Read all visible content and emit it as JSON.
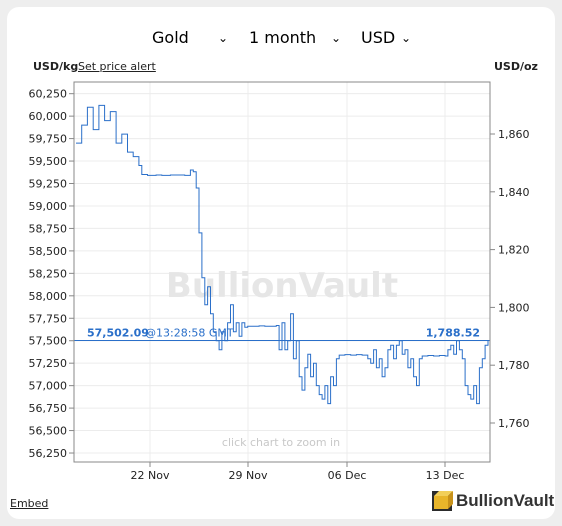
{
  "controls": {
    "metal": "Gold",
    "period": "1 month",
    "currency": "USD"
  },
  "header": {
    "left_unit": "USD/kg",
    "set_alert": "Set price alert",
    "right_unit": "USD/oz"
  },
  "footer": {
    "embed": "Embed",
    "brand": "BullionVault"
  },
  "chart_data": {
    "type": "candlestick",
    "watermark": "BullionVault",
    "zoom_hint": "click chart to zoom in",
    "left_axis": {
      "unit": "USD/kg",
      "ylim": [
        56150,
        60380
      ],
      "ticks": [
        "56,250",
        "56,500",
        "56,750",
        "57,000",
        "57,250",
        "57,500",
        "57,750",
        "58,000",
        "58,250",
        "58,500",
        "58,750",
        "59,000",
        "59,250",
        "59,500",
        "59,750",
        "60,000",
        "60,250"
      ]
    },
    "right_axis": {
      "unit": "USD/oz",
      "ylim": [
        1746.5,
        1878.0
      ],
      "ticks": [
        "1,760",
        "1,780",
        "1,800",
        "1,820",
        "1,840",
        "1,860"
      ]
    },
    "x_ticks": [
      "22 Nov",
      "29 Nov",
      "06 Dec",
      "13 Dec"
    ],
    "current_price_kg": "57,502.09",
    "current_price_oz": "1,788.52",
    "current_time_label": "@13:28:58 GMT",
    "current_line_kg": 57502.09,
    "grid": true,
    "series_color": "#2a6fc9",
    "price_path_kg": [
      [
        0,
        59700
      ],
      [
        2,
        59900
      ],
      [
        4,
        60100
      ],
      [
        6,
        59850
      ],
      [
        8,
        60120
      ],
      [
        10,
        59950
      ],
      [
        12,
        60050
      ],
      [
        14,
        59700
      ],
      [
        16,
        59800
      ],
      [
        18,
        59600
      ],
      [
        20,
        59550
      ],
      [
        22,
        59450
      ],
      [
        23,
        59350
      ],
      [
        25,
        59340
      ],
      [
        28,
        59345
      ],
      [
        30,
        59340
      ],
      [
        33,
        59345
      ],
      [
        36,
        59345
      ],
      [
        38,
        59340
      ],
      [
        40,
        59400
      ],
      [
        41,
        59380
      ],
      [
        42,
        59200
      ],
      [
        43,
        58700
      ],
      [
        44,
        58200
      ],
      [
        45,
        57900
      ],
      [
        46,
        58100
      ],
      [
        47,
        57800
      ],
      [
        48,
        57600
      ],
      [
        49,
        57500
      ],
      [
        50,
        57400
      ],
      [
        51,
        57600
      ],
      [
        52,
        57500
      ],
      [
        53,
        57700
      ],
      [
        54,
        57900
      ],
      [
        55,
        57600
      ],
      [
        56,
        57700
      ],
      [
        57,
        57550
      ],
      [
        58,
        57700
      ],
      [
        59,
        57650
      ],
      [
        60,
        57660
      ],
      [
        62,
        57660
      ],
      [
        64,
        57665
      ],
      [
        66,
        57660
      ],
      [
        68,
        57660
      ],
      [
        70,
        57670
      ],
      [
        71,
        57400
      ],
      [
        72,
        57700
      ],
      [
        73,
        57400
      ],
      [
        74,
        57500
      ],
      [
        75,
        57800
      ],
      [
        76,
        57300
      ],
      [
        77,
        57500
      ],
      [
        78,
        57100
      ],
      [
        79,
        56950
      ],
      [
        80,
        57200
      ],
      [
        81,
        57350
      ],
      [
        82,
        57100
      ],
      [
        83,
        57250
      ],
      [
        84,
        57000
      ],
      [
        85,
        56900
      ],
      [
        86,
        56850
      ],
      [
        87,
        57000
      ],
      [
        88,
        56800
      ],
      [
        89,
        57100
      ],
      [
        90,
        57000
      ],
      [
        91,
        57300
      ],
      [
        92,
        57340
      ],
      [
        94,
        57345
      ],
      [
        96,
        57340
      ],
      [
        98,
        57345
      ],
      [
        100,
        57340
      ],
      [
        102,
        57300
      ],
      [
        103,
        57250
      ],
      [
        104,
        57400
      ],
      [
        105,
        57200
      ],
      [
        106,
        57300
      ],
      [
        107,
        57100
      ],
      [
        108,
        57200
      ],
      [
        109,
        57400
      ],
      [
        110,
        57450
      ],
      [
        111,
        57300
      ],
      [
        112,
        57450
      ],
      [
        113,
        57500
      ],
      [
        114,
        57350
      ],
      [
        115,
        57400
      ],
      [
        116,
        57200
      ],
      [
        117,
        57300
      ],
      [
        118,
        57100
      ],
      [
        119,
        57000
      ],
      [
        120,
        57300
      ],
      [
        121,
        57330
      ],
      [
        123,
        57335
      ],
      [
        125,
        57330
      ],
      [
        127,
        57335
      ],
      [
        129,
        57330
      ],
      [
        130,
        57400
      ],
      [
        131,
        57450
      ],
      [
        132,
        57350
      ],
      [
        133,
        57500
      ],
      [
        134,
        57400
      ],
      [
        135,
        57300
      ],
      [
        136,
        57000
      ],
      [
        137,
        56900
      ],
      [
        138,
        56850
      ],
      [
        139,
        57000
      ],
      [
        140,
        56800
      ],
      [
        141,
        57200
      ],
      [
        142,
        57300
      ],
      [
        143,
        57450
      ],
      [
        144,
        57502
      ]
    ]
  }
}
